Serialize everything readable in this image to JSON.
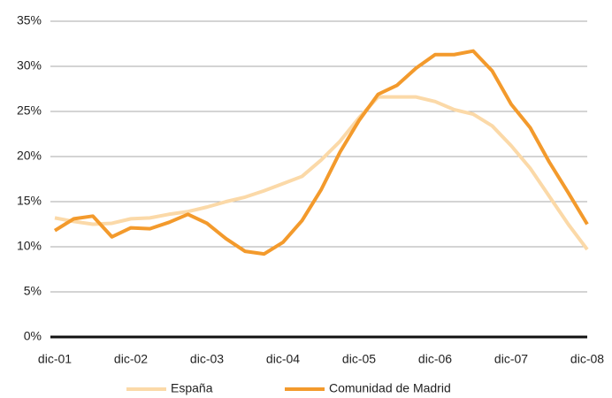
{
  "chart_data": {
    "type": "line",
    "categories": [
      "dic-01",
      null,
      null,
      null,
      "dic-02",
      null,
      null,
      null,
      "dic-03",
      null,
      null,
      null,
      "dic-04",
      null,
      null,
      null,
      "dic-05",
      null,
      null,
      null,
      "dic-06",
      null,
      null,
      null,
      "dic-07",
      null,
      null,
      null,
      "dic-08"
    ],
    "series": [
      {
        "name": "España",
        "color": "#fbd9a8",
        "values": [
          13.2,
          12.8,
          12.5,
          12.6,
          13.1,
          13.2,
          13.6,
          13.9,
          14.4,
          15.0,
          15.5,
          16.2,
          17.0,
          17.8,
          19.6,
          21.7,
          24.3,
          26.6,
          26.6,
          26.6,
          26.1,
          25.2,
          24.7,
          23.4,
          21.2,
          18.7,
          15.6,
          12.5,
          9.7
        ]
      },
      {
        "name": "Comunidad de Madrid",
        "color": "#f39a2c",
        "values": [
          11.8,
          13.1,
          13.4,
          11.1,
          12.1,
          12.0,
          12.7,
          13.6,
          12.6,
          10.9,
          9.5,
          9.2,
          10.5,
          12.9,
          16.3,
          20.5,
          24.0,
          26.9,
          27.9,
          29.8,
          31.3,
          31.3,
          31.7,
          29.5,
          25.8,
          23.2,
          19.4,
          16.0,
          12.5
        ]
      }
    ],
    "ylim": [
      0,
      35
    ],
    "yticks": [
      {
        "value": 0,
        "label": "0%"
      },
      {
        "value": 5,
        "label": "5%"
      },
      {
        "value": 10,
        "label": "10%"
      },
      {
        "value": 15,
        "label": "15%"
      },
      {
        "value": 20,
        "label": "20%"
      },
      {
        "value": 25,
        "label": "25%"
      },
      {
        "value": 30,
        "label": "30%"
      },
      {
        "value": 35,
        "label": "35%"
      }
    ],
    "grid": true,
    "legend": "bottom"
  }
}
